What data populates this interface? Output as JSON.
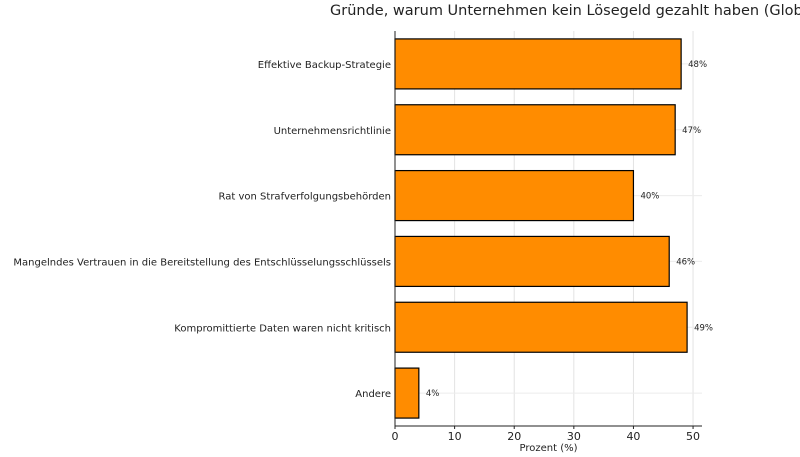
{
  "chart_data": {
    "type": "bar",
    "orientation": "horizontal",
    "title": "Gründe, warum Unternehmen kein Lösegeld gezahlt haben (Global)",
    "xlabel": "Prozent (%)",
    "ylabel": "",
    "categories": [
      "Effektive Backup-Strategie",
      "Unternehmensrichtlinie",
      "Rat von Strafverfolgungsbehörden",
      "Mangelndes Vertrauen in die Bereitstellung des Entschlüsselungsschlüssels",
      "Kompromittierte Daten waren nicht kritisch",
      "Andere"
    ],
    "values": [
      48,
      47,
      40,
      46,
      49,
      4
    ],
    "data_labels": [
      "48%",
      "47%",
      "40%",
      "46%",
      "49%",
      "4%"
    ],
    "xticks": [
      0,
      10,
      20,
      30,
      40,
      50
    ],
    "xlim": [
      0,
      51.5
    ],
    "grid": true,
    "bar_color": "#ff8c00",
    "edge_color": "#000000"
  }
}
